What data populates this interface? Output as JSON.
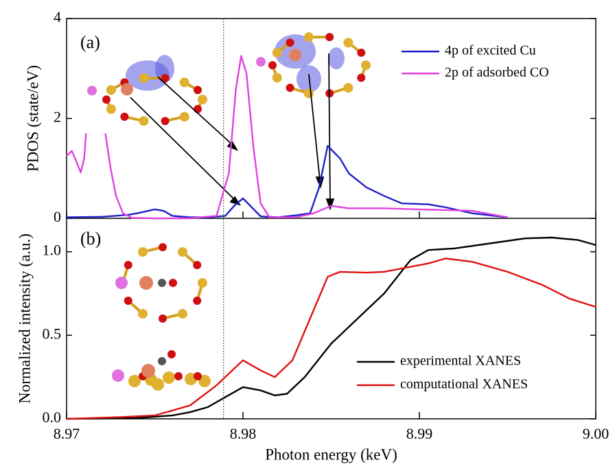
{
  "chart_data": [
    {
      "type": "line",
      "panel_label": "(a)",
      "y_label": "PDOS (state/eV)",
      "ylim": [
        0,
        4
      ],
      "yticks": [
        0,
        2,
        4
      ],
      "xlim": [
        8.97,
        9.0
      ],
      "legend": "upper right",
      "reference_line": 8.9789,
      "series": [
        {
          "name": "4p of excited Cu",
          "color": "#1f1fc8",
          "x": [
            8.97,
            8.972,
            8.9735,
            8.974,
            8.975,
            8.9755,
            8.976,
            8.977,
            8.978,
            8.979,
            8.9795,
            8.98,
            8.9805,
            8.981,
            8.982,
            8.983,
            8.9838,
            8.9843,
            8.9848,
            8.9855,
            8.986,
            8.987,
            8.988,
            8.989,
            8.9905,
            8.9915,
            8.993,
            8.995
          ],
          "values": [
            0.02,
            0.03,
            0.07,
            0.1,
            0.18,
            0.15,
            0.05,
            0.02,
            0.02,
            0.05,
            0.25,
            0.4,
            0.22,
            0.04,
            0.02,
            0.06,
            0.1,
            0.6,
            1.45,
            1.2,
            0.9,
            0.62,
            0.45,
            0.3,
            0.28,
            0.22,
            0.1,
            0.02
          ]
        },
        {
          "name": "2p of adsorbed CO",
          "color": "#e040e0",
          "x": [
            8.97,
            8.9703,
            8.9706,
            8.9708,
            8.971,
            8.9711,
            8.9721,
            8.9722,
            8.9725,
            8.9728,
            8.9732,
            8.9737,
            8.975,
            8.977,
            8.9785,
            8.9792,
            8.9796,
            8.9799,
            8.9802,
            8.9806,
            8.981,
            8.9815,
            8.983,
            8.984,
            8.985,
            8.986,
            8.988,
            8.99,
            8.993,
            8.995
          ],
          "values": [
            1.25,
            1.35,
            1.1,
            0.92,
            1.2,
            1.7,
            null,
            1.7,
            1.0,
            0.45,
            0.1,
            0.01,
            0.0,
            0.0,
            0.05,
            0.9,
            2.6,
            3.25,
            2.9,
            1.4,
            0.3,
            0.02,
            0.02,
            0.1,
            0.25,
            0.2,
            0.2,
            0.18,
            0.15,
            0.02
          ]
        }
      ]
    },
    {
      "type": "line",
      "panel_label": "(b)",
      "y_label": "Normalized intensity (a.u.)",
      "x_label": "Photon energy (keV)",
      "ylim": [
        0,
        1.2
      ],
      "yticks": [
        {
          "value": 0,
          "label": "0.0"
        },
        0.5,
        {
          "value": 1,
          "label": "1.0"
        }
      ],
      "xlim": [
        8.97,
        9.0
      ],
      "xticks": [
        8.97,
        8.98,
        8.99,
        {
          "value": 9.0,
          "label": "9.00"
        }
      ],
      "legend": "lower right",
      "series": [
        {
          "name": "experimental XANES",
          "color": "#000000",
          "x": [
            8.97,
            8.974,
            8.976,
            8.977,
            8.978,
            8.979,
            8.98,
            8.981,
            8.9818,
            8.9825,
            8.9835,
            8.985,
            8.9865,
            8.988,
            8.9895,
            8.9905,
            8.992,
            8.994,
            8.996,
            8.9975,
            8.999,
            9.0
          ],
          "values": [
            0.0,
            0.005,
            0.02,
            0.04,
            0.07,
            0.13,
            0.19,
            0.17,
            0.14,
            0.15,
            0.25,
            0.45,
            0.6,
            0.75,
            0.95,
            1.01,
            1.02,
            1.05,
            1.08,
            1.085,
            1.07,
            1.04
          ]
        },
        {
          "name": "computational XANES",
          "color": "#e01010",
          "x": [
            8.97,
            8.973,
            8.975,
            8.977,
            8.9785,
            8.98,
            8.981,
            8.9818,
            8.9828,
            8.9838,
            8.9848,
            8.9855,
            8.987,
            8.988,
            8.989,
            8.9905,
            8.9915,
            8.993,
            8.995,
            8.997,
            8.9985,
            9.0
          ],
          "values": [
            0.0,
            0.01,
            0.02,
            0.08,
            0.2,
            0.35,
            0.29,
            0.25,
            0.35,
            0.6,
            0.85,
            0.88,
            0.875,
            0.88,
            0.9,
            0.93,
            0.96,
            0.94,
            0.88,
            0.8,
            0.72,
            0.67
          ]
        }
      ]
    }
  ]
}
